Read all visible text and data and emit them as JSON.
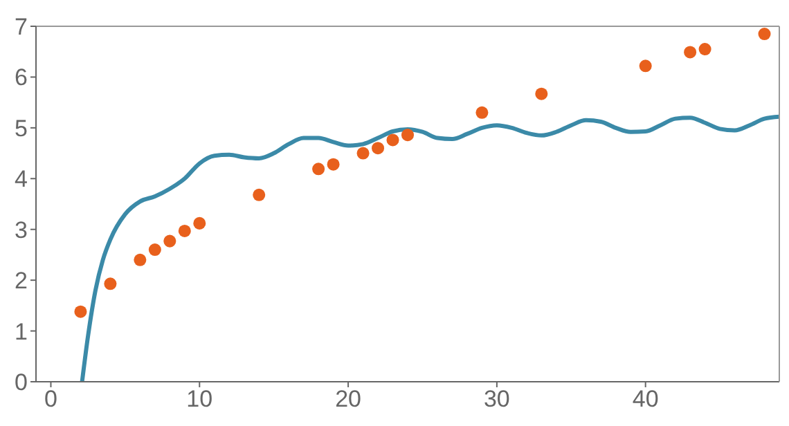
{
  "chart_data": {
    "type": "scatter",
    "xlim": [
      -1,
      49
    ],
    "xticks": [
      0,
      10,
      20,
      30,
      40
    ],
    "ylim": [
      0,
      7
    ],
    "yticks": [
      0,
      1,
      2,
      3,
      4,
      5,
      6,
      7
    ],
    "series": [
      {
        "type": "line",
        "color": "#3b8aa8",
        "marker": "none",
        "line_style": "solid",
        "x": [
          2.1,
          2.5,
          3,
          3.5,
          4,
          5,
          6,
          7,
          8,
          9,
          10,
          11,
          12,
          13,
          14,
          15,
          16,
          17,
          18,
          19,
          20,
          21,
          22,
          23,
          24,
          25,
          26,
          27,
          28,
          29,
          30,
          31,
          32,
          33,
          34,
          35,
          36,
          37,
          38,
          39,
          40,
          41,
          42,
          43,
          44,
          45,
          46,
          47,
          48,
          49
        ],
        "values": [
          0,
          0.9,
          1.8,
          2.4,
          2.8,
          3.3,
          3.55,
          3.65,
          3.8,
          4.0,
          4.3,
          4.45,
          4.47,
          4.42,
          4.4,
          4.5,
          4.68,
          4.8,
          4.8,
          4.72,
          4.65,
          4.68,
          4.8,
          4.93,
          4.97,
          4.92,
          4.8,
          4.78,
          4.88,
          5.0,
          5.05,
          5.0,
          4.9,
          4.85,
          4.92,
          5.05,
          5.15,
          5.12,
          5.0,
          4.92,
          4.93,
          5.05,
          5.18,
          5.2,
          5.1,
          4.98,
          4.95,
          5.05,
          5.18,
          5.22
        ]
      },
      {
        "color": "#e8601c",
        "marker": "circle",
        "x": [
          2,
          4,
          6,
          7,
          8,
          9,
          10,
          14,
          18,
          19,
          21,
          22,
          23,
          24,
          29,
          33,
          40,
          43,
          44,
          48
        ],
        "values": [
          1.38,
          1.93,
          2.4,
          2.6,
          2.77,
          2.97,
          3.12,
          3.68,
          4.19,
          4.28,
          4.5,
          4.6,
          4.76,
          4.86,
          5.3,
          5.67,
          6.22,
          6.49,
          6.55,
          6.85
        ]
      }
    ]
  }
}
